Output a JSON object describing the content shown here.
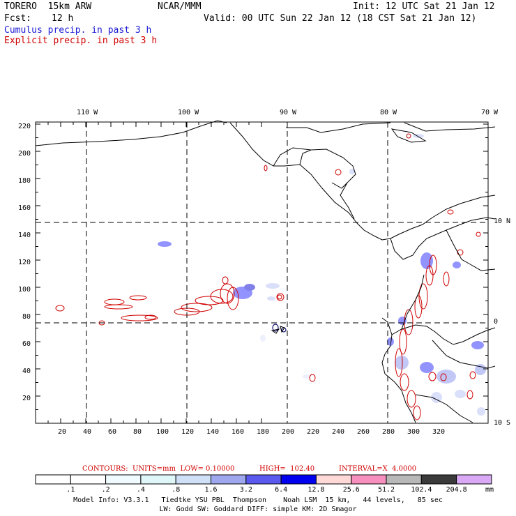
{
  "header": {
    "model": "TORERO  15km ARW",
    "center": "NCAR/MMM",
    "init": "Init: 12 UTC Sat 21 Jan 12",
    "fcst_label": "Fcst:",
    "fcst_value": "12 h",
    "valid": "Valid: 00 UTC Sun 22 Jan 12 (18 CST Sat 21 Jan 12)",
    "line_cumulus": "Cumulus precip. in past 3 h",
    "line_explicit": "Explicit precip. in past 3 h"
  },
  "colors": {
    "cumulus": "#1a1ad6",
    "explicit": "#d00000",
    "coast": "#000000"
  },
  "lon_labels": [
    "110 W",
    "100 W",
    "90 W",
    "80 W",
    "70 W"
  ],
  "lat_labels": [
    "10 N",
    "0",
    "10 S"
  ],
  "y_ticks": [
    "220",
    "200",
    "180",
    "160",
    "140",
    "120",
    "100",
    "80",
    "60",
    "40",
    "20"
  ],
  "x_ticks": [
    "20",
    "40",
    "60",
    "80",
    "100",
    "120",
    "140",
    "160",
    "180",
    "200",
    "220",
    "240",
    "260",
    "280",
    "300",
    "320"
  ],
  "contour_info": {
    "units": "CONTOURS:  UNITS=mm  LOW= 0.10000",
    "high": "HIGH=  102.40",
    "interval": "INTERVAL=X  4.0000"
  },
  "colorbar": {
    "unit": "mm",
    "labels": [
      ".1",
      ".2",
      ".4",
      ".8",
      "1.6",
      "3.2",
      "6.4",
      "12.8",
      "25.6",
      "51.2",
      "102.4",
      "204.8"
    ],
    "colors": [
      "#ffffff",
      "#ffffff",
      "#f0fbff",
      "#e0f7fa",
      "#cfe0f7",
      "#9fa8ee",
      "#5a5aee",
      "#0000ee",
      "#ffd8d8",
      "#f78fbf",
      "#b8b8b8",
      "#3a3a3a",
      "#d9a9f5"
    ]
  },
  "footer": {
    "line1": "Model Info: V3.3.1   Tiedtke YSU PBL  Thompson    Noah LSM  15 km,   44 levels,   85 sec",
    "line2": "LW: Godd SW: Goddard DIFF: simple KM: 2D Smagor"
  }
}
